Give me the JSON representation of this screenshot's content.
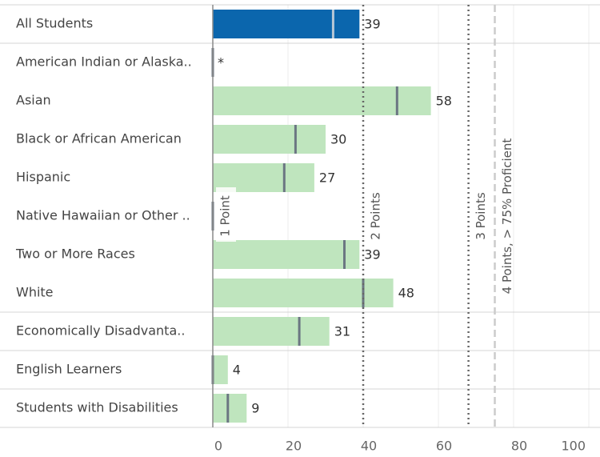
{
  "chart_data": {
    "type": "bar",
    "orientation": "horizontal",
    "categories": [
      "All Students",
      "American Indian or Alaska..",
      "Asian",
      "Black or African American",
      "Hispanic",
      "Native Hawaiian or Other ..",
      "Two or More Races",
      "White",
      "Economically Disadvanta..",
      "English Learners",
      "Students with Disabilities"
    ],
    "values": [
      39,
      null,
      58,
      30,
      27,
      null,
      39,
      48,
      31,
      4,
      9
    ],
    "value_labels": [
      "39",
      "*",
      "58",
      "30",
      "27",
      null,
      "39",
      "48",
      "31",
      "4",
      "9"
    ],
    "colors": [
      "#0b66ad",
      "#bfe5be",
      "#bfe5be",
      "#bfe5be",
      "#bfe5be",
      "#bfe5be",
      "#bfe5be",
      "#bfe5be",
      "#bfe5be",
      "#bfe5be",
      "#bfe5be"
    ],
    "markers": [
      32,
      0,
      49,
      22,
      19,
      0,
      35,
      40,
      23,
      0,
      4
    ],
    "reference_lines": [
      {
        "label": "1 Point",
        "value": 0,
        "style": "solid"
      },
      {
        "label": "2 Points",
        "value": 40,
        "style": "dotted"
      },
      {
        "label": "3 Points",
        "value": 68,
        "style": "dotted"
      },
      {
        "label": "4 Points, > 75% Proficient",
        "value": 75,
        "style": "dashed"
      }
    ],
    "xlim": [
      0,
      100
    ],
    "xticks": [
      0,
      20,
      40,
      60,
      80,
      100
    ],
    "grid": true
  }
}
